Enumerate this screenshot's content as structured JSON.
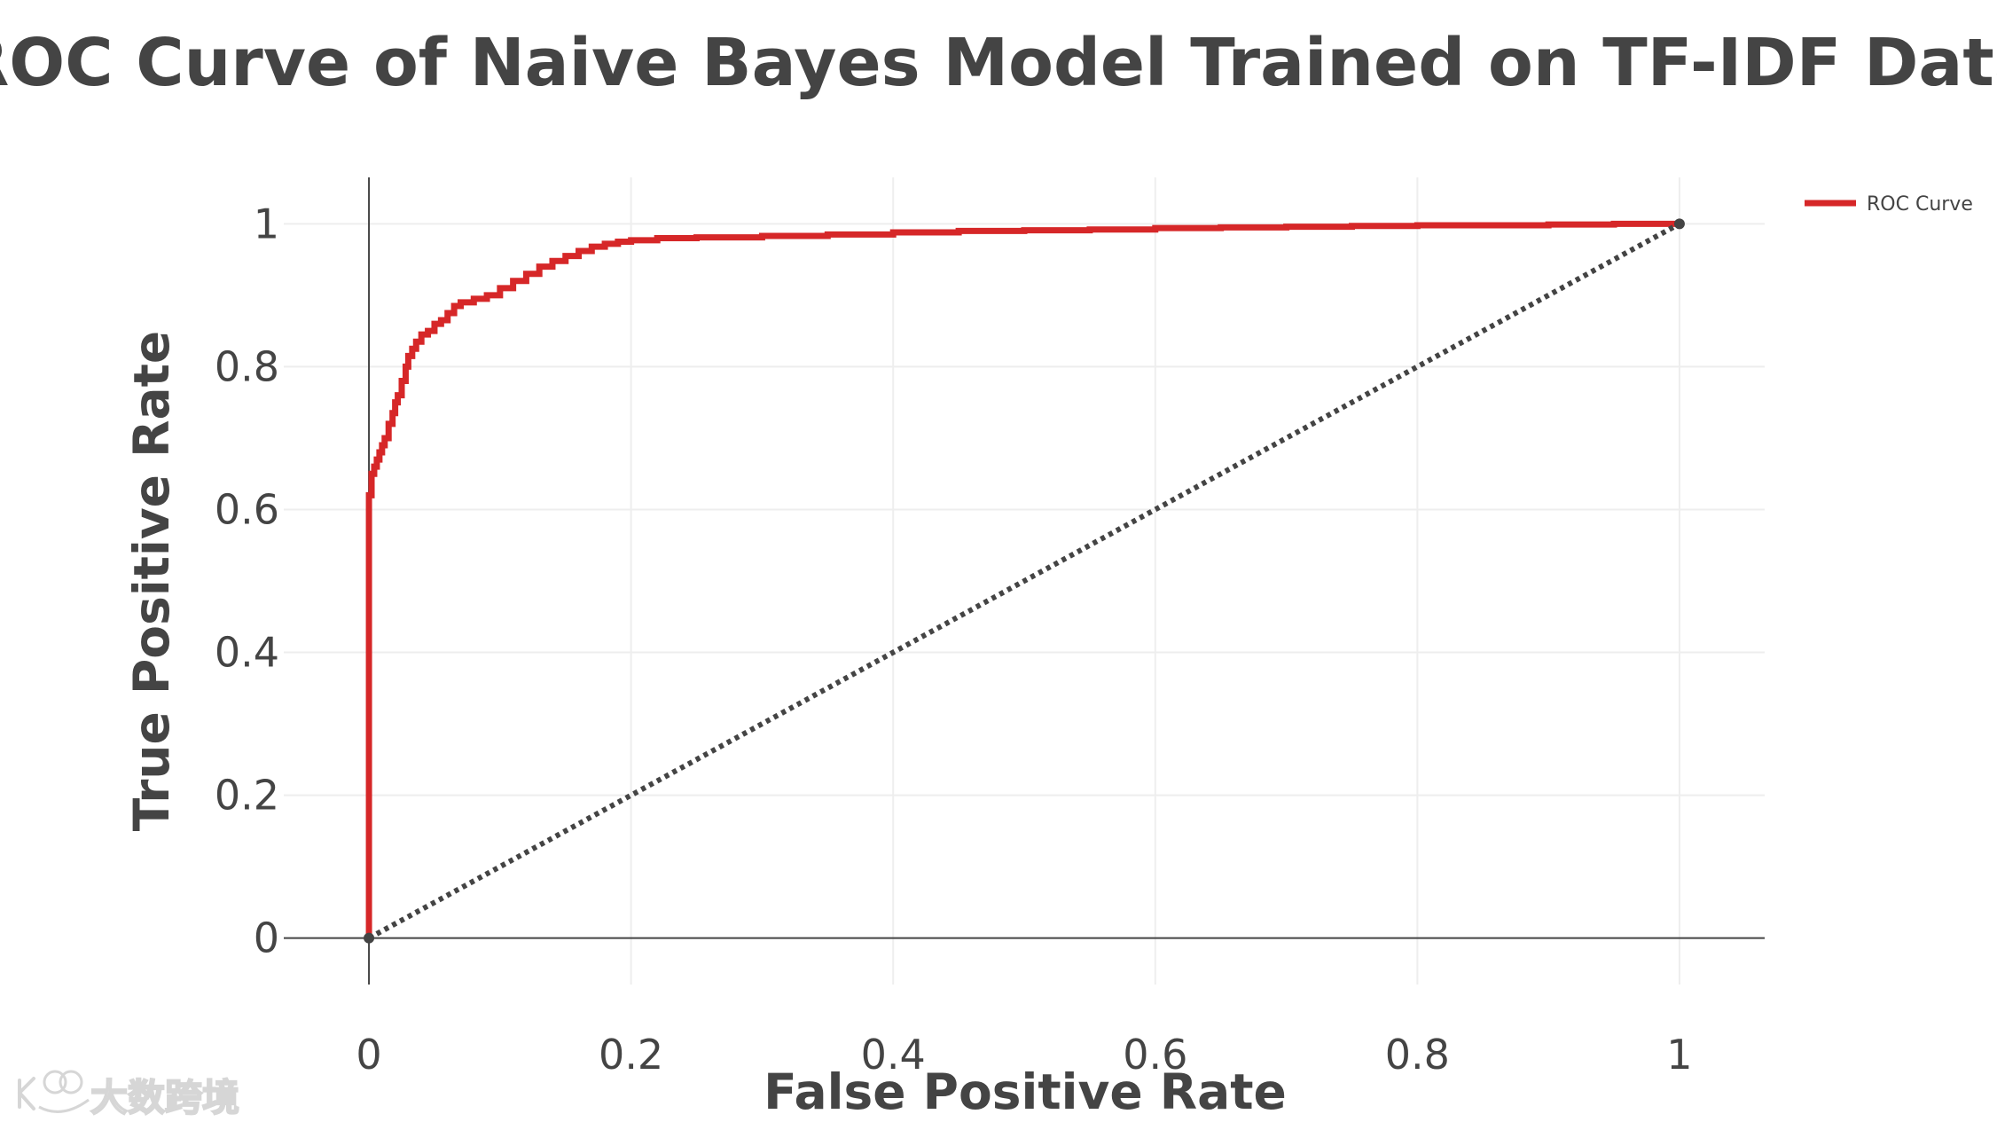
{
  "chart_data": {
    "type": "line",
    "title": "ROC Curve of Naive Bayes Model Trained on TF-IDF Data",
    "xlabel": "False Positive Rate",
    "ylabel": "True Positive Rate",
    "xlim": [
      -0.065,
      1.065
    ],
    "ylim": [
      -0.065,
      1.065
    ],
    "grid": true,
    "legend_position": "top-right",
    "x_ticks": [
      {
        "value": 0,
        "label": "0"
      },
      {
        "value": 0.2,
        "label": "0.2"
      },
      {
        "value": 0.4,
        "label": "0.4"
      },
      {
        "value": 0.6,
        "label": "0.6"
      },
      {
        "value": 0.8,
        "label": "0.8"
      },
      {
        "value": 1,
        "label": "1"
      }
    ],
    "y_ticks": [
      {
        "value": 0,
        "label": "0"
      },
      {
        "value": 0.2,
        "label": "0.2"
      },
      {
        "value": 0.4,
        "label": "0.4"
      },
      {
        "value": 0.6,
        "label": "0.6"
      },
      {
        "value": 0.8,
        "label": "0.8"
      },
      {
        "value": 1,
        "label": "1"
      }
    ],
    "series": [
      {
        "name": "ROC Curve",
        "color": "#d62728",
        "style": "solid-step",
        "x": [
          0,
          0,
          0.002,
          0.004,
          0.006,
          0.008,
          0.01,
          0.012,
          0.015,
          0.018,
          0.02,
          0.022,
          0.025,
          0.028,
          0.03,
          0.033,
          0.036,
          0.04,
          0.045,
          0.05,
          0.055,
          0.06,
          0.065,
          0.07,
          0.08,
          0.09,
          0.1,
          0.11,
          0.12,
          0.13,
          0.14,
          0.15,
          0.16,
          0.17,
          0.18,
          0.19,
          0.2,
          0.22,
          0.25,
          0.3,
          0.35,
          0.4,
          0.45,
          0.5,
          0.55,
          0.6,
          0.65,
          0.7,
          0.75,
          0.8,
          0.85,
          0.9,
          0.95,
          1.0
        ],
        "y": [
          0,
          0.62,
          0.65,
          0.66,
          0.67,
          0.68,
          0.69,
          0.7,
          0.72,
          0.735,
          0.75,
          0.76,
          0.78,
          0.8,
          0.815,
          0.825,
          0.835,
          0.845,
          0.85,
          0.86,
          0.865,
          0.875,
          0.885,
          0.89,
          0.895,
          0.9,
          0.91,
          0.92,
          0.93,
          0.94,
          0.948,
          0.955,
          0.962,
          0.968,
          0.972,
          0.975,
          0.977,
          0.98,
          0.981,
          0.983,
          0.985,
          0.988,
          0.99,
          0.991,
          0.992,
          0.994,
          0.995,
          0.996,
          0.997,
          0.998,
          0.998,
          0.999,
          1.0,
          1.0
        ]
      },
      {
        "name": "",
        "color": "#444444",
        "style": "dotted",
        "markers": true,
        "x": [
          0,
          1
        ],
        "y": [
          0,
          1
        ]
      }
    ]
  },
  "watermark": {
    "logo_icon": "kuajing-logo-icon",
    "text": "大数跨境"
  }
}
